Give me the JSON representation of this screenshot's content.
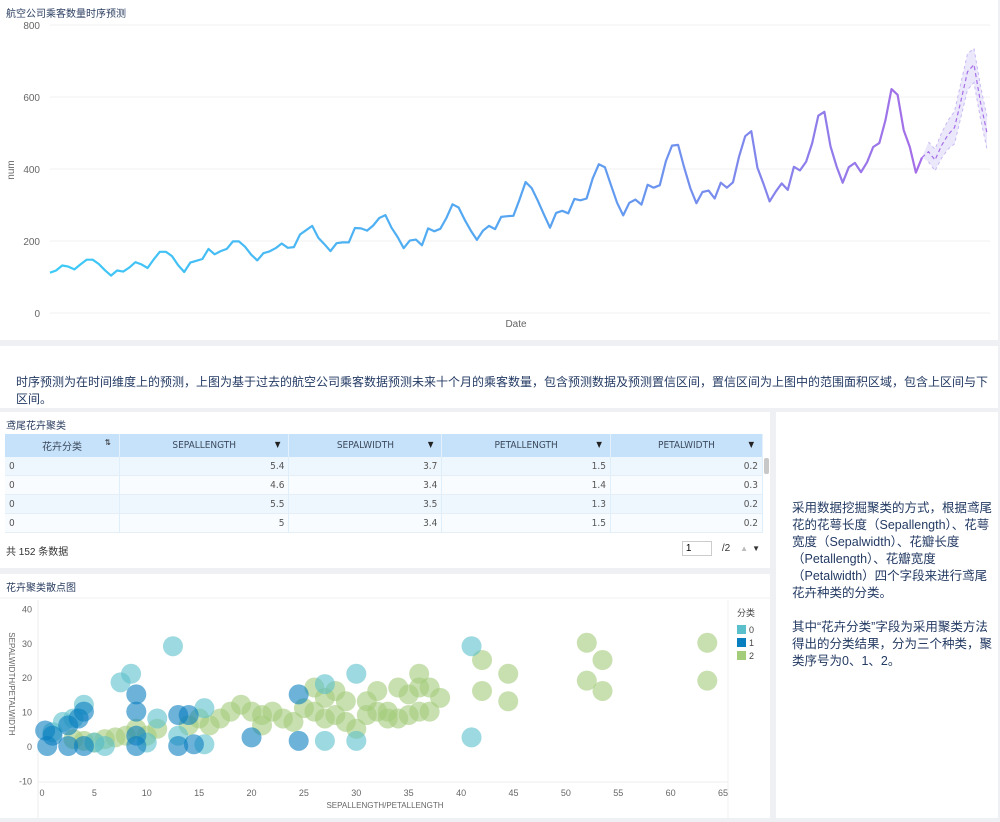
{
  "line_panel": {
    "title": "航空公司乘客数量时序预测"
  },
  "description_top": "时序预测为在时间维度上的预测，上图为基于过去的航空公司乘客数据预测未来十个月的乘客数量，包含预测数据及预测置信区间，置信区间为上图中的范围面积区域，包含上区间与下区间。",
  "table_panel": {
    "title": "鸢尾花卉聚类",
    "columns": [
      "花卉分类",
      "SEPALLENGTH",
      "SEPALWIDTH",
      "PETALLENGTH",
      "PETALWIDTH"
    ],
    "rows": [
      [
        "0",
        "5.4",
        "3.7",
        "1.5",
        "0.2"
      ],
      [
        "0",
        "4.6",
        "3.4",
        "1.4",
        "0.3"
      ],
      [
        "0",
        "5.5",
        "3.5",
        "1.3",
        "0.2"
      ],
      [
        "0",
        "5",
        "3.4",
        "1.5",
        "0.2"
      ]
    ],
    "total_label": "共 152 条数据",
    "page_value": "1",
    "page_total": "/2"
  },
  "scatter_panel": {
    "title": "花卉聚类散点图"
  },
  "description_right": "采用数据挖掘聚类的方式，根据鸢尾花的花萼长度（Sepallength）、花萼宽度（Sepalwidth）、花瓣长度（Petallength）、花瓣宽度（Petalwidth）四个字段来进行鸢尾花卉种类的分类。\n\n其中“花卉分类”字段为采用聚类方法得出的分类结果，分为三个种类，聚类序号为0、1、2。",
  "chart_data": [
    {
      "type": "line",
      "title": "航空公司乘客数量时序预测",
      "xlabel": "Date",
      "ylabel": "num",
      "ylim": [
        0,
        800
      ],
      "yticks": [
        0,
        200,
        400,
        600,
        800
      ],
      "colors": {
        "start": "#3ccaf6",
        "end": "#a66ee8",
        "band": "#e6e2fb"
      },
      "values": [
        112,
        118,
        132,
        129,
        121,
        135,
        148,
        148,
        136,
        119,
        104,
        118,
        115,
        126,
        141,
        135,
        125,
        149,
        170,
        170,
        158,
        133,
        114,
        140,
        145,
        150,
        178,
        163,
        172,
        178,
        199,
        199,
        184,
        162,
        146,
        166,
        171,
        180,
        193,
        181,
        183,
        218,
        230,
        242,
        209,
        191,
        172,
        194,
        196,
        196,
        236,
        235,
        229,
        243,
        264,
        272,
        237,
        211,
        180,
        201,
        204,
        188,
        235,
        227,
        234,
        264,
        302,
        293,
        259,
        229,
        203,
        229,
        242,
        233,
        267,
        269,
        270,
        315,
        364,
        347,
        312,
        274,
        237,
        278,
        284,
        277,
        317,
        313,
        318,
        374,
        413,
        405,
        355,
        306,
        271,
        306,
        315,
        301,
        356,
        348,
        355,
        422,
        465,
        467,
        404,
        347,
        305,
        336,
        340,
        318,
        362,
        348,
        363,
        435,
        491,
        505,
        404,
        359,
        310,
        337,
        360,
        342,
        406,
        396,
        420,
        472,
        548,
        559,
        463,
        407,
        362,
        405,
        417,
        391,
        419,
        461,
        472,
        535,
        622,
        606,
        508,
        461,
        390,
        432
      ],
      "forecast": [
        448,
        425,
        465,
        495,
        515,
        590,
        670,
        690,
        585,
        500
      ],
      "forecast_upper": [
        475,
        455,
        500,
        535,
        560,
        640,
        720,
        735,
        630,
        545
      ],
      "forecast_lower": [
        420,
        395,
        430,
        455,
        470,
        545,
        620,
        640,
        540,
        455
      ]
    },
    {
      "type": "scatter",
      "xlabel": "SEPALLENGTH/PETALLENGTH",
      "ylabel": "SEPALWIDTH/PETALWIDTH",
      "xlim": [
        0,
        65
      ],
      "ylim": [
        -10,
        40
      ],
      "xticks": [
        0,
        5,
        10,
        15,
        20,
        25,
        30,
        35,
        40,
        45,
        50,
        55,
        60,
        65
      ],
      "yticks": [
        -10,
        0,
        10,
        20,
        30,
        40
      ],
      "legend": {
        "title": "分类",
        "position": "right",
        "entries": [
          "0",
          "1",
          "2"
        ]
      },
      "colors": {
        "0": "#5cbfcc",
        "1": "#0a7fbf",
        "2": "#a3cc7b"
      },
      "points": [
        [
          12.5,
          29,
          0
        ],
        [
          8.5,
          21,
          0
        ],
        [
          7.5,
          18.5,
          0
        ],
        [
          4,
          12,
          0
        ],
        [
          15.5,
          11,
          0
        ],
        [
          11,
          8,
          0
        ],
        [
          2,
          7,
          0
        ],
        [
          1,
          4,
          0
        ],
        [
          10,
          1,
          0
        ],
        [
          15.5,
          0.5,
          0
        ],
        [
          27,
          18,
          0
        ],
        [
          30,
          21,
          0
        ],
        [
          27,
          1.5,
          0
        ],
        [
          30,
          1.5,
          0
        ],
        [
          41,
          29,
          0
        ],
        [
          41,
          2.5,
          0
        ],
        [
          5,
          1,
          0
        ],
        [
          13,
          3,
          0
        ],
        [
          6,
          0,
          0
        ],
        [
          3,
          8,
          0
        ],
        [
          9,
          15,
          1
        ],
        [
          9,
          10,
          1
        ],
        [
          4,
          10,
          1
        ],
        [
          2.5,
          6,
          1
        ],
        [
          1,
          3,
          1
        ],
        [
          0.5,
          0,
          1
        ],
        [
          2.5,
          0,
          1
        ],
        [
          4,
          0,
          1
        ],
        [
          9,
          0,
          1
        ],
        [
          13,
          9,
          1
        ],
        [
          14,
          9,
          1
        ],
        [
          20,
          2.5,
          1
        ],
        [
          24.5,
          15,
          1
        ],
        [
          24.5,
          1.5,
          1
        ],
        [
          13,
          0,
          1
        ],
        [
          14.5,
          0.5,
          1
        ],
        [
          9,
          3,
          1
        ],
        [
          0.3,
          4.5,
          1
        ],
        [
          3.5,
          8,
          1
        ],
        [
          5,
          1,
          2
        ],
        [
          6,
          2,
          2
        ],
        [
          7,
          2.5,
          2
        ],
        [
          8,
          3,
          2
        ],
        [
          9,
          5,
          2
        ],
        [
          10,
          3,
          2
        ],
        [
          11,
          5,
          2
        ],
        [
          14,
          6,
          2
        ],
        [
          15,
          8,
          2
        ],
        [
          16,
          6,
          2
        ],
        [
          17,
          8,
          2
        ],
        [
          18,
          10,
          2
        ],
        [
          19,
          12,
          2
        ],
        [
          20,
          10,
          2
        ],
        [
          21,
          9,
          2
        ],
        [
          22,
          10,
          2
        ],
        [
          21,
          6,
          2
        ],
        [
          23,
          8,
          2
        ],
        [
          26,
          10,
          2
        ],
        [
          27,
          8,
          2
        ],
        [
          28,
          9,
          2
        ],
        [
          29,
          13,
          2
        ],
        [
          26,
          17,
          2
        ],
        [
          27,
          14,
          2
        ],
        [
          28,
          16,
          2
        ],
        [
          31,
          13,
          2
        ],
        [
          32,
          16,
          2
        ],
        [
          33,
          10,
          2
        ],
        [
          34,
          17,
          2
        ],
        [
          35,
          15,
          2
        ],
        [
          36,
          21,
          2
        ],
        [
          36,
          17,
          2
        ],
        [
          35,
          9,
          2
        ],
        [
          33,
          8,
          2
        ],
        [
          37,
          10,
          2
        ],
        [
          31,
          9,
          2
        ],
        [
          30,
          5,
          2
        ],
        [
          42,
          25,
          2
        ],
        [
          42,
          16,
          2
        ],
        [
          44.5,
          21,
          2
        ],
        [
          44.5,
          13,
          2
        ],
        [
          52,
          30,
          2
        ],
        [
          52,
          19,
          2
        ],
        [
          53.5,
          25,
          2
        ],
        [
          53.5,
          16,
          2
        ],
        [
          63.5,
          30,
          2
        ],
        [
          63.5,
          19,
          2
        ],
        [
          24,
          7,
          2
        ],
        [
          25,
          11,
          2
        ],
        [
          29,
          7,
          2
        ],
        [
          32,
          10,
          2
        ],
        [
          34,
          8,
          2
        ],
        [
          36,
          10,
          2
        ],
        [
          37,
          17,
          2
        ],
        [
          38,
          14,
          2
        ],
        [
          3,
          2,
          2
        ],
        [
          4,
          1.5,
          2
        ]
      ]
    }
  ]
}
